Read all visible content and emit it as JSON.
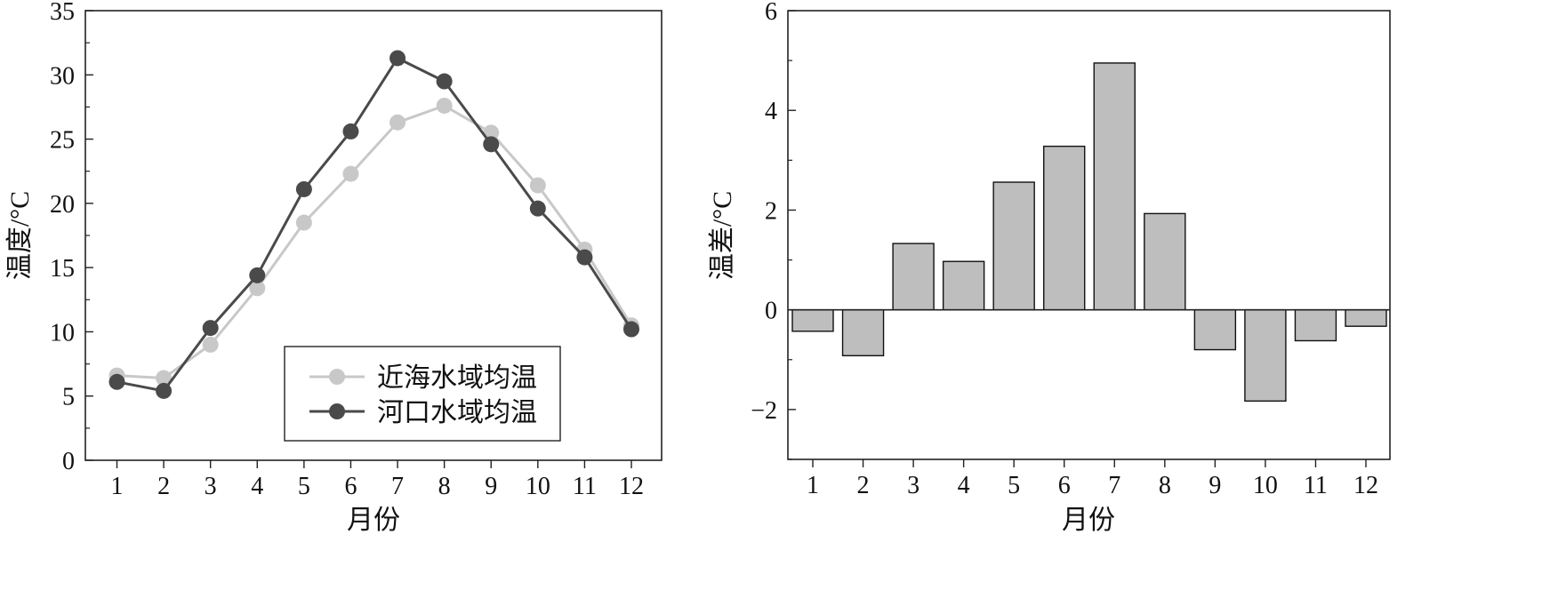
{
  "chart_data": [
    {
      "type": "line",
      "title": "",
      "xlabel": "月份",
      "ylabel": "温度/°C",
      "categories": [
        "1",
        "2",
        "3",
        "4",
        "5",
        "6",
        "7",
        "8",
        "9",
        "10",
        "11",
        "12"
      ],
      "ylim": [
        0,
        35
      ],
      "yticks": [
        0,
        5,
        10,
        15,
        20,
        25,
        30,
        35
      ],
      "grid": false,
      "legend_position": "bottom-center",
      "series": [
        {
          "name": "近海水域均温",
          "color": "#c8c8c8",
          "values": [
            6.6,
            6.4,
            9.0,
            13.4,
            18.5,
            22.3,
            26.3,
            27.6,
            25.5,
            21.4,
            16.4,
            10.5
          ]
        },
        {
          "name": "河口水域均温",
          "color": "#4a4a4a",
          "values": [
            6.1,
            5.4,
            10.3,
            14.4,
            21.1,
            25.6,
            31.3,
            29.5,
            24.6,
            19.6,
            15.8,
            10.2
          ]
        }
      ]
    },
    {
      "type": "bar",
      "title": "",
      "xlabel": "月份",
      "ylabel": "温差/°C",
      "categories": [
        "1",
        "2",
        "3",
        "4",
        "5",
        "6",
        "7",
        "8",
        "9",
        "10",
        "11",
        "12"
      ],
      "ylim": [
        -3,
        6
      ],
      "yticks": [
        -2,
        0,
        2,
        4,
        6
      ],
      "ytick_labels": [
        "−2",
        "0",
        "2",
        "4",
        "6"
      ],
      "grid": false,
      "bar_color": "#bebebe",
      "values": [
        -0.43,
        -0.92,
        1.33,
        0.97,
        2.56,
        3.28,
        4.95,
        1.93,
        -0.8,
        -1.83,
        -0.62,
        -0.33
      ]
    }
  ]
}
